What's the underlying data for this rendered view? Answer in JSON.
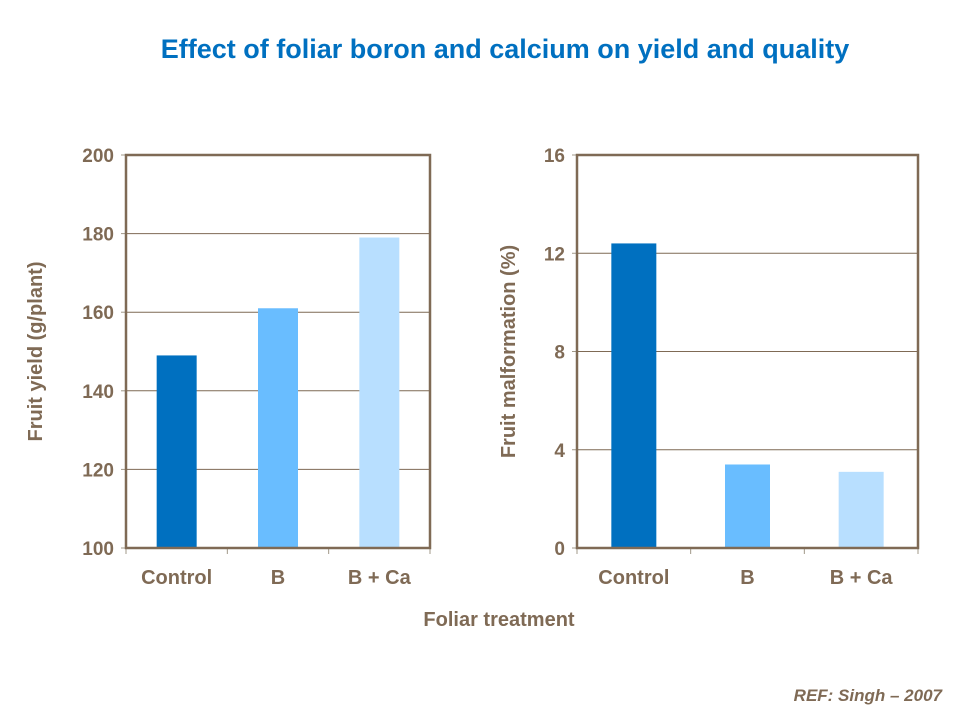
{
  "title": "Effect of foliar boron and calcium on yield and quality",
  "reference": "REF:  Singh – 2007",
  "shared_xlabel": "Foliar treatment",
  "chart_data": [
    {
      "type": "bar",
      "categories": [
        "Control",
        "B",
        "B + Ca"
      ],
      "values": [
        149,
        161,
        179
      ],
      "colors": [
        "#0070c0",
        "#69bdff",
        "#b8dfff"
      ],
      "ylabel": "Fruit yield (g/plant)",
      "xlabel": "Foliar treatment",
      "ylim": [
        100,
        200
      ],
      "yticks": [
        100,
        120,
        140,
        160,
        180,
        200
      ],
      "grid": true
    },
    {
      "type": "bar",
      "categories": [
        "Control",
        "B",
        "B + Ca"
      ],
      "values": [
        12.4,
        3.4,
        3.1
      ],
      "colors": [
        "#0070c0",
        "#69bdff",
        "#b8dfff"
      ],
      "ylabel": "Fruit malformation (%)",
      "xlabel": "Foliar treatment",
      "ylim": [
        0,
        16
      ],
      "yticks": [
        0,
        4,
        8,
        12,
        16
      ],
      "grid": true
    }
  ]
}
